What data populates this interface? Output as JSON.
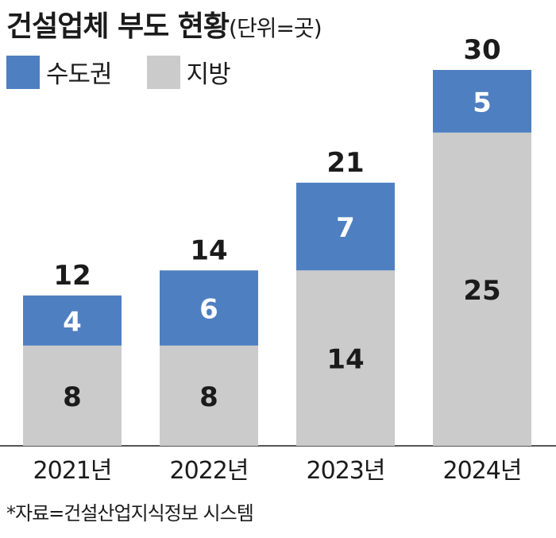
{
  "title": "건설업체 부도 현황",
  "unit": "(단위=곳)",
  "legend": [
    {
      "label": "수도권",
      "color": "#4e7fc1"
    },
    {
      "label": "지방",
      "color": "#cbcbcb"
    }
  ],
  "chart_data": {
    "type": "bar",
    "stacked": true,
    "categories": [
      "2021년",
      "2022년",
      "2023년",
      "2024년"
    ],
    "series": [
      {
        "name": "지방",
        "values": [
          8,
          8,
          14,
          25
        ],
        "color": "#cbcbcb"
      },
      {
        "name": "수도권",
        "values": [
          4,
          6,
          7,
          5
        ],
        "color": "#4e7fc1"
      }
    ],
    "totals": [
      12,
      14,
      21,
      30
    ],
    "ylim": [
      0,
      30
    ],
    "grid": false,
    "legend_position": "top-left"
  },
  "source": "*자료=건설산업지식정보 시스템"
}
